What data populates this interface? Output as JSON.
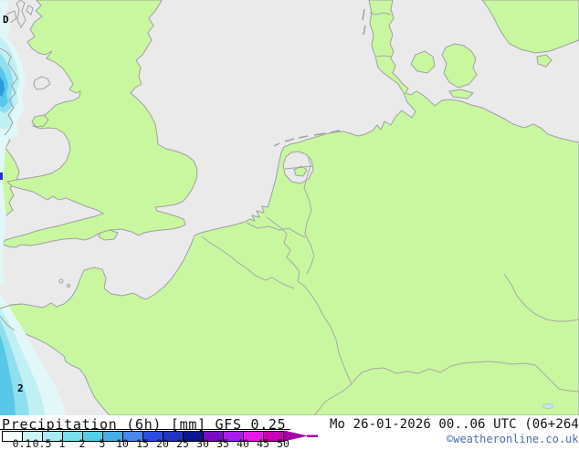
{
  "map": {
    "colors": {
      "sea": "#eaeaea",
      "land": "#c8f7a0",
      "coast": "#a0a0a0",
      "border": "#a8a8a8",
      "lake": "#bfe4f8",
      "precip": [
        "#e2f8f8",
        "#c0f0f4",
        "#8edff0",
        "#58c8e8",
        "#2f9ad8",
        "#2233cc"
      ]
    },
    "annotations": {
      "low_pressure_label": "D",
      "contour_label": "2"
    }
  },
  "legend": {
    "full_title": "Precipitation (6h) [mm] GFS 0.25",
    "title": "Precipitation (6h)",
    "unit": "[mm]",
    "model": "GFS 0.25",
    "arrow_color": "#a800a8",
    "stops": [
      {
        "label": "0.1",
        "color": "#f7ffff"
      },
      {
        "label": "0.5",
        "color": "#c9f5f6"
      },
      {
        "label": "1",
        "color": "#a4ecf1"
      },
      {
        "label": "2",
        "color": "#7adeec"
      },
      {
        "label": "5",
        "color": "#55cce8"
      },
      {
        "label": "10",
        "color": "#46aee4"
      },
      {
        "label": "15",
        "color": "#4a86ec"
      },
      {
        "label": "20",
        "color": "#2c4ce4"
      },
      {
        "label": "25",
        "color": "#2334c4"
      },
      {
        "label": "30",
        "color": "#0e1592"
      },
      {
        "label": "35",
        "color": "#7a0cc6"
      },
      {
        "label": "40",
        "color": "#a81cee"
      },
      {
        "label": "45",
        "color": "#e818e8"
      },
      {
        "label": "50",
        "color": "#c400b4"
      }
    ]
  },
  "footer": {
    "datetime": "Mo 26-01-2026 00..06 UTC (06+264",
    "copyright": "©weatheronline.co.uk",
    "copyright_color": "#4a6db5"
  }
}
